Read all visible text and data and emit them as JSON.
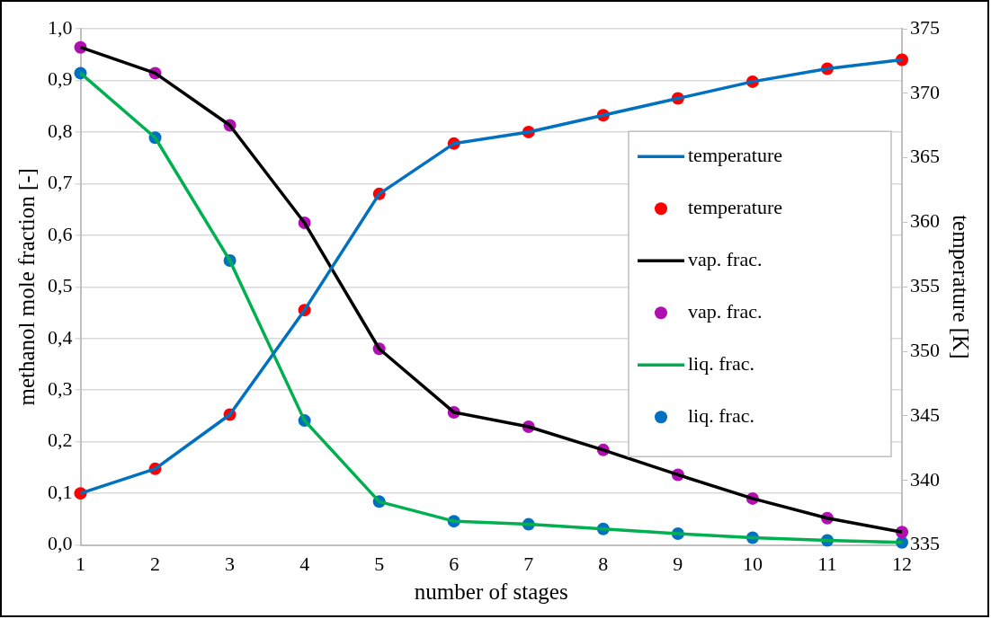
{
  "chart_data": {
    "type": "line",
    "xlabel": "number of stages",
    "ylabel": "methanol mole fraction [-]",
    "y2label": "temperature [K]",
    "x": [
      1,
      2,
      3,
      4,
      5,
      6,
      7,
      8,
      9,
      10,
      11,
      12
    ],
    "xlim": [
      1,
      12
    ],
    "xticks": [
      1,
      2,
      3,
      4,
      5,
      6,
      7,
      8,
      9,
      10,
      11,
      12
    ],
    "ylim": [
      0,
      1
    ],
    "yticks": [
      {
        "value": 0,
        "label": "0,0"
      },
      {
        "value": 0.1,
        "label": "0,1"
      },
      {
        "value": 0.2,
        "label": "0,2"
      },
      {
        "value": 0.3,
        "label": "0,3"
      },
      {
        "value": 0.4,
        "label": "0,4"
      },
      {
        "value": 0.5,
        "label": "0,5"
      },
      {
        "value": 0.6,
        "label": "0,6"
      },
      {
        "value": 0.7,
        "label": "0,7"
      },
      {
        "value": 0.8,
        "label": "0,8"
      },
      {
        "value": 0.9,
        "label": "0,9"
      },
      {
        "value": 1,
        "label": "1,0"
      }
    ],
    "y2lim": [
      335,
      375
    ],
    "y2ticks": [
      335,
      340,
      345,
      350,
      355,
      360,
      365,
      370,
      375
    ],
    "grid": "y",
    "legend": "right",
    "series": [
      {
        "name": "temperature",
        "marker": "none",
        "axis": "y2",
        "color": "#0070c0",
        "values": [
          339.0,
          340.9,
          345.1,
          353.2,
          362.2,
          366.1,
          367.0,
          368.3,
          369.6,
          370.9,
          371.9,
          372.6
        ]
      },
      {
        "name": "temperature",
        "type": "scatter",
        "marker": "circle",
        "axis": "y2",
        "color": "#ff0000",
        "values": [
          339.0,
          340.9,
          345.1,
          353.2,
          362.2,
          366.1,
          367.0,
          368.3,
          369.6,
          370.9,
          371.9,
          372.6
        ]
      },
      {
        "name": "vap. frac.",
        "marker": "none",
        "color": "#000000",
        "values": [
          0.964,
          0.914,
          0.813,
          0.624,
          0.38,
          0.257,
          0.229,
          0.184,
          0.136,
          0.09,
          0.052,
          0.025
        ]
      },
      {
        "name": "vap. frac.",
        "type": "scatter",
        "marker": "circle",
        "color": "#b010b0",
        "values": [
          0.964,
          0.914,
          0.813,
          0.624,
          0.38,
          0.257,
          0.229,
          0.184,
          0.136,
          0.09,
          0.052,
          0.025
        ]
      },
      {
        "name": "liq. frac.",
        "marker": "none",
        "color": "#00b050",
        "values": [
          0.914,
          0.789,
          0.551,
          0.241,
          0.084,
          0.046,
          0.04,
          0.031,
          0.022,
          0.014,
          0.009,
          0.005
        ]
      },
      {
        "name": "liq. frac.",
        "type": "scatter",
        "marker": "circle",
        "color": "#0070c0",
        "values": [
          0.914,
          0.789,
          0.551,
          0.241,
          0.084,
          0.046,
          0.04,
          0.031,
          0.022,
          0.014,
          0.009,
          0.005
        ]
      }
    ]
  }
}
